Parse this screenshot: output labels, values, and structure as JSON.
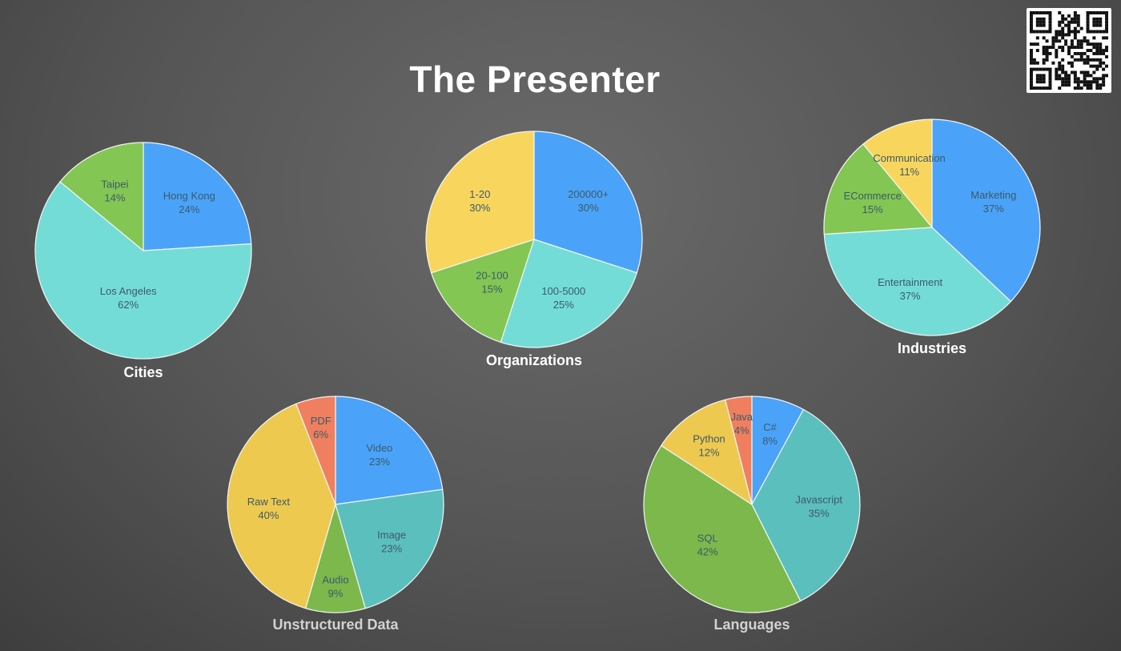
{
  "slide": {
    "title": "The Presenter"
  },
  "colors": {
    "blue": "#4aa3f8",
    "teal": "#74dcd7",
    "teal_dark": "#5bbfbd",
    "green": "#83c653",
    "green_dark": "#7cb84c",
    "yellow": "#f8d65e",
    "yellow_dark": "#eec94f",
    "orange": "#ef7f5e",
    "label_text": "#3c5a6a",
    "title_white": "#ffffff",
    "title_grey": "#d2d2d2"
  },
  "chart_data": [
    {
      "type": "pie",
      "title": "Cities",
      "slices": [
        {
          "label": "Hong Kong",
          "value": 24,
          "pct_text": "24%",
          "color": "#4aa3f8"
        },
        {
          "label": "Los Angeles",
          "value": 62,
          "pct_text": "62%",
          "color": "#74dcd7"
        },
        {
          "label": "Taipei",
          "value": 14,
          "pct_text": "14%",
          "color": "#83c653"
        }
      ]
    },
    {
      "type": "pie",
      "title": "Organizations",
      "slices": [
        {
          "label": "200000+",
          "value": 30,
          "pct_text": "30%",
          "color": "#4aa3f8"
        },
        {
          "label": "100-5000",
          "value": 25,
          "pct_text": "25%",
          "color": "#74dcd7"
        },
        {
          "label": "20-100",
          "value": 15,
          "pct_text": "15%",
          "color": "#83c653"
        },
        {
          "label": "1-20",
          "value": 30,
          "pct_text": "30%",
          "color": "#f8d65e"
        }
      ]
    },
    {
      "type": "pie",
      "title": "Industries",
      "slices": [
        {
          "label": "Marketing",
          "value": 37,
          "pct_text": "37%",
          "color": "#4aa3f8"
        },
        {
          "label": "Entertainment",
          "value": 37,
          "pct_text": "37%",
          "color": "#74dcd7"
        },
        {
          "label": "ECommerce",
          "value": 15,
          "pct_text": "15%",
          "color": "#83c653"
        },
        {
          "label": "Communication",
          "value": 11,
          "pct_text": "11%",
          "color": "#f8d65e"
        }
      ]
    },
    {
      "type": "pie",
      "title": "Unstructured Data",
      "slices": [
        {
          "label": "Video",
          "value": 23,
          "pct_text": "23%",
          "color": "#4aa3f8"
        },
        {
          "label": "Image",
          "value": 23,
          "pct_text": "23%",
          "color": "#5bbfbd"
        },
        {
          "label": "Audio",
          "value": 9,
          "pct_text": "9%",
          "color": "#7cb84c"
        },
        {
          "label": "Raw Text",
          "value": 40,
          "pct_text": "40%",
          "color": "#eec94f"
        },
        {
          "label": "PDF",
          "value": 6,
          "pct_text": "6%",
          "color": "#ef7f5e"
        }
      ]
    },
    {
      "type": "pie",
      "title": "Languages",
      "slices": [
        {
          "label": "C#",
          "value": 8,
          "pct_text": "8%",
          "color": "#4aa3f8"
        },
        {
          "label": "Javascript",
          "value": 35,
          "pct_text": "35%",
          "color": "#5bbfbd"
        },
        {
          "label": "SQL",
          "value": 42,
          "pct_text": "42%",
          "color": "#7cb84c"
        },
        {
          "label": "Python",
          "value": 12,
          "pct_text": "12%",
          "color": "#eec94f"
        },
        {
          "label": "Java",
          "value": 4,
          "pct_text": "4%",
          "color": "#ef7f5e"
        }
      ]
    }
  ]
}
